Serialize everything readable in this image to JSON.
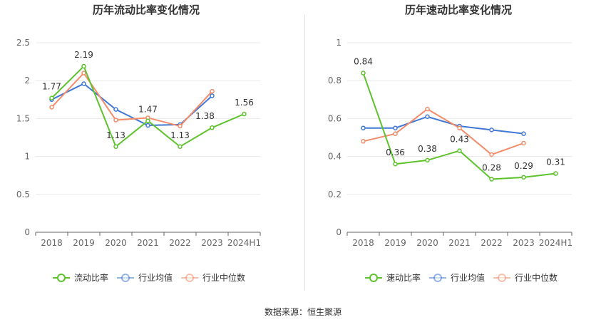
{
  "source_label": "数据来源：恒生聚源",
  "chart_data": [
    {
      "type": "line",
      "title": "历年流动比率变化情况",
      "categories": [
        "2018",
        "2019",
        "2020",
        "2021",
        "2022",
        "2023",
        "2024H1"
      ],
      "ylim": [
        0,
        2.5
      ],
      "yticks": [
        "0",
        "0.5",
        "1",
        "1.5",
        "2",
        "2.5"
      ],
      "grid": true,
      "legend_position": "bottom",
      "series": [
        {
          "name": "流动比率",
          "color": "#5ec22d",
          "values": [
            1.77,
            2.19,
            1.13,
            1.47,
            1.13,
            1.38,
            1.56
          ],
          "labels": [
            "1.77",
            "2.19",
            "1.13",
            "1.47",
            "1.13",
            "1.38",
            "1.56"
          ]
        },
        {
          "name": "行业均值",
          "color": "#3f78d6",
          "values": [
            1.75,
            1.96,
            1.62,
            1.41,
            1.42,
            1.8,
            null
          ]
        },
        {
          "name": "行业中位数",
          "color": "#f28c6a",
          "values": [
            1.65,
            2.1,
            1.48,
            1.51,
            1.4,
            1.86,
            null
          ]
        }
      ]
    },
    {
      "type": "line",
      "title": "历年速动比率变化情况",
      "categories": [
        "2018",
        "2019",
        "2020",
        "2021",
        "2022",
        "2023",
        "2024H1"
      ],
      "ylim": [
        0,
        1
      ],
      "yticks": [
        "0",
        "0.2",
        "0.4",
        "0.6",
        "0.8",
        "1"
      ],
      "grid": true,
      "legend_position": "bottom",
      "series": [
        {
          "name": "速动比率",
          "color": "#5ec22d",
          "values": [
            0.84,
            0.36,
            0.38,
            0.43,
            0.28,
            0.29,
            0.31
          ],
          "labels": [
            "0.84",
            "0.36",
            "0.38",
            "0.43",
            "0.28",
            "0.29",
            "0.31"
          ]
        },
        {
          "name": "行业均值",
          "color": "#3f78d6",
          "values": [
            0.55,
            0.55,
            0.61,
            0.56,
            0.54,
            0.52,
            null
          ]
        },
        {
          "name": "行业中位数",
          "color": "#f28c6a",
          "values": [
            0.48,
            0.52,
            0.65,
            0.55,
            0.41,
            0.47,
            null
          ]
        }
      ]
    }
  ]
}
